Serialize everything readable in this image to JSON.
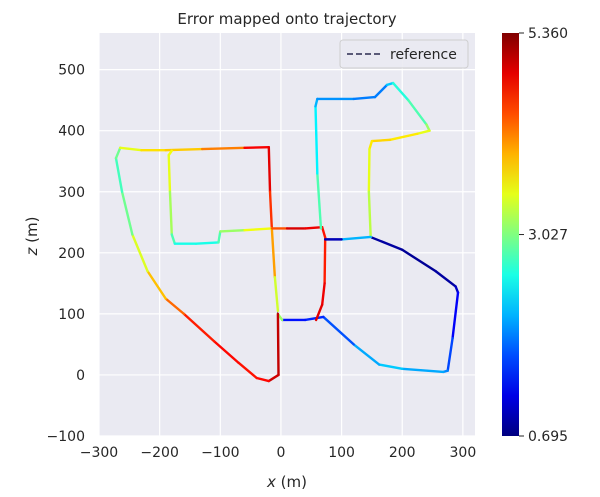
{
  "chart_data": {
    "type": "line",
    "title": "Error mapped onto trajectory",
    "xlabel_var": "x",
    "xlabel_unit": " (m)",
    "ylabel_var": "z",
    "ylabel_unit": " (m)",
    "xlim": [
      -300,
      320
    ],
    "ylim": [
      -100,
      560
    ],
    "xticks": [
      -300,
      -200,
      -100,
      0,
      100,
      200,
      300
    ],
    "yticks": [
      -100,
      0,
      100,
      200,
      300,
      400,
      500
    ],
    "grid": true,
    "legend": {
      "position": "top-right",
      "entries": [
        "reference"
      ]
    },
    "colorbar": {
      "min": 0.695,
      "max": 5.36,
      "tick_values": [
        0.695,
        3.027,
        5.36
      ],
      "tick_labels": [
        "0.695",
        "3.027",
        "5.360"
      ],
      "colormap": "jet"
    },
    "reference_color": "#5a5a78",
    "background_color": "#eaeaf2",
    "trajectory": [
      {
        "x": 150,
        "z": 225,
        "e": 0.9
      },
      {
        "x": 200,
        "z": 205,
        "e": 0.8
      },
      {
        "x": 255,
        "z": 170,
        "e": 0.8
      },
      {
        "x": 288,
        "z": 145,
        "e": 0.9
      },
      {
        "x": 292,
        "z": 135,
        "e": 1.1
      },
      {
        "x": 283,
        "z": 60,
        "e": 1.4
      },
      {
        "x": 275,
        "z": 7,
        "e": 1.8
      },
      {
        "x": 268,
        "z": 5,
        "e": 2.0
      },
      {
        "x": 200,
        "z": 10,
        "e": 2.1
      },
      {
        "x": 162,
        "z": 17,
        "e": 2.3
      },
      {
        "x": 120,
        "z": 50,
        "e": 1.8
      },
      {
        "x": 70,
        "z": 95,
        "e": 1.5
      },
      {
        "x": 40,
        "z": 90,
        "e": 1.4
      },
      {
        "x": 2,
        "z": 90,
        "e": 1.3
      },
      {
        "x": -5,
        "z": 100,
        "e": 5.0
      },
      {
        "x": -4,
        "z": 0,
        "e": 5.1
      },
      {
        "x": -20,
        "z": -10,
        "e": 4.9
      },
      {
        "x": -40,
        "z": -5,
        "e": 4.6
      },
      {
        "x": -70,
        "z": 20,
        "e": 4.8
      },
      {
        "x": -110,
        "z": 55,
        "e": 4.7
      },
      {
        "x": -160,
        "z": 100,
        "e": 4.6
      },
      {
        "x": -190,
        "z": 125,
        "e": 4.0
      },
      {
        "x": -220,
        "z": 170,
        "e": 3.8
      },
      {
        "x": -245,
        "z": 230,
        "e": 3.1
      },
      {
        "x": -262,
        "z": 300,
        "e": 2.8
      },
      {
        "x": -272,
        "z": 355,
        "e": 2.7
      },
      {
        "x": -265,
        "z": 372,
        "e": 3.2
      },
      {
        "x": -230,
        "z": 368,
        "e": 3.8
      },
      {
        "x": -190,
        "z": 368,
        "e": 3.7
      },
      {
        "x": -130,
        "z": 370,
        "e": 4.0
      },
      {
        "x": -60,
        "z": 372,
        "e": 4.4
      },
      {
        "x": -20,
        "z": 373,
        "e": 5.2
      },
      {
        "x": -18,
        "z": 300,
        "e": 4.6
      },
      {
        "x": -15,
        "z": 240,
        "e": 4.5
      },
      {
        "x": -10,
        "z": 160,
        "e": 3.6
      },
      {
        "x": -5,
        "z": 105,
        "e": 3.2
      }
    ],
    "trajectory_b": [
      {
        "x": -180,
        "z": 367,
        "e": 3.5
      },
      {
        "x": -185,
        "z": 360,
        "e": 3.6
      },
      {
        "x": -183,
        "z": 300,
        "e": 3.4
      },
      {
        "x": -180,
        "z": 230,
        "e": 3.0
      },
      {
        "x": -175,
        "z": 215,
        "e": 2.6
      },
      {
        "x": -140,
        "z": 215,
        "e": 2.5
      },
      {
        "x": -103,
        "z": 217,
        "e": 2.6
      },
      {
        "x": -100,
        "z": 235,
        "e": 3.0
      },
      {
        "x": -60,
        "z": 237,
        "e": 3.3
      },
      {
        "x": -15,
        "z": 240,
        "e": 3.8
      },
      {
        "x": 10,
        "z": 240,
        "e": 5.0
      },
      {
        "x": 40,
        "z": 240,
        "e": 4.9
      },
      {
        "x": 68,
        "z": 242,
        "e": 4.8
      },
      {
        "x": 73,
        "z": 225,
        "e": 4.6
      },
      {
        "x": 72,
        "z": 150,
        "e": 4.7
      },
      {
        "x": 68,
        "z": 115,
        "e": 5.0
      },
      {
        "x": 58,
        "z": 90,
        "e": 4.8
      }
    ],
    "trajectory_c": [
      {
        "x": 66,
        "z": 240,
        "e": 3.0
      },
      {
        "x": 60,
        "z": 330,
        "e": 2.6
      },
      {
        "x": 57,
        "z": 440,
        "e": 2.2
      },
      {
        "x": 60,
        "z": 452,
        "e": 2.0
      },
      {
        "x": 120,
        "z": 452,
        "e": 1.9
      },
      {
        "x": 155,
        "z": 455,
        "e": 1.8
      },
      {
        "x": 175,
        "z": 475,
        "e": 1.9
      },
      {
        "x": 185,
        "z": 478,
        "e": 2.5
      },
      {
        "x": 210,
        "z": 450,
        "e": 2.7
      },
      {
        "x": 240,
        "z": 410,
        "e": 2.9
      },
      {
        "x": 245,
        "z": 400,
        "e": 3.4
      },
      {
        "x": 225,
        "z": 395,
        "e": 3.6
      },
      {
        "x": 180,
        "z": 385,
        "e": 3.8
      },
      {
        "x": 150,
        "z": 383,
        "e": 3.8
      },
      {
        "x": 146,
        "z": 370,
        "e": 3.6
      },
      {
        "x": 145,
        "z": 300,
        "e": 3.4
      },
      {
        "x": 148,
        "z": 226,
        "e": 3.2
      },
      {
        "x": 100,
        "z": 222,
        "e": 1.0
      },
      {
        "x": 73,
        "z": 222,
        "e": 0.9
      }
    ]
  }
}
